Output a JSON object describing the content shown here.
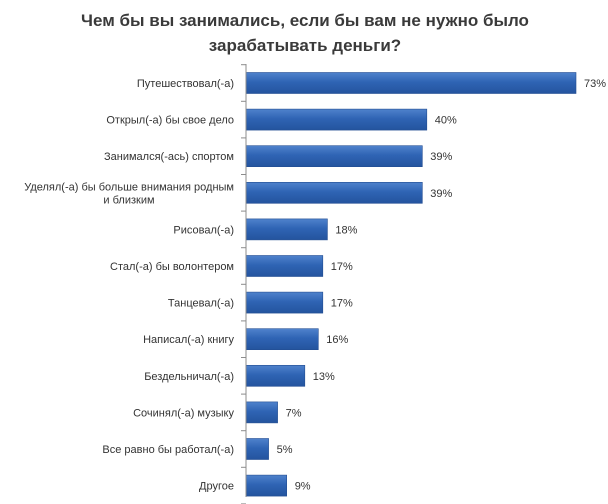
{
  "chart_data": {
    "type": "bar",
    "orientation": "horizontal",
    "title": "Чем бы вы занимались, если бы вам не нужно было зарабатывать деньги?",
    "categories": [
      "Путешествовал(-а)",
      "Открыл(-а) бы свое дело",
      "Занимался(-ась) спортом",
      "Уделял(-а) бы больше внимания родным и близким",
      "Рисовал(-а)",
      "Стал(-а) бы волонтером",
      "Танцевал(-а)",
      "Написал(-а) книгу",
      "Бездельничал(-а)",
      "Сочинял(-а) музыку",
      "Все равно бы работал(-а)",
      "Другое"
    ],
    "values": [
      73,
      40,
      39,
      39,
      18,
      17,
      17,
      16,
      13,
      7,
      5,
      9
    ],
    "value_labels": [
      "73%",
      "40%",
      "39%",
      "39%",
      "18%",
      "17%",
      "17%",
      "16%",
      "13%",
      "7%",
      "5%",
      "9%"
    ],
    "unit": "%",
    "xlim": [
      0,
      73
    ],
    "grid": false,
    "legend": "none",
    "colors": {
      "bar": "#2f64b4",
      "bar_edge": "#234e92",
      "axis": "#8c8c8c",
      "category_text": "#333333",
      "value_text": "#333333",
      "title_text": "#3a3a3a"
    }
  }
}
